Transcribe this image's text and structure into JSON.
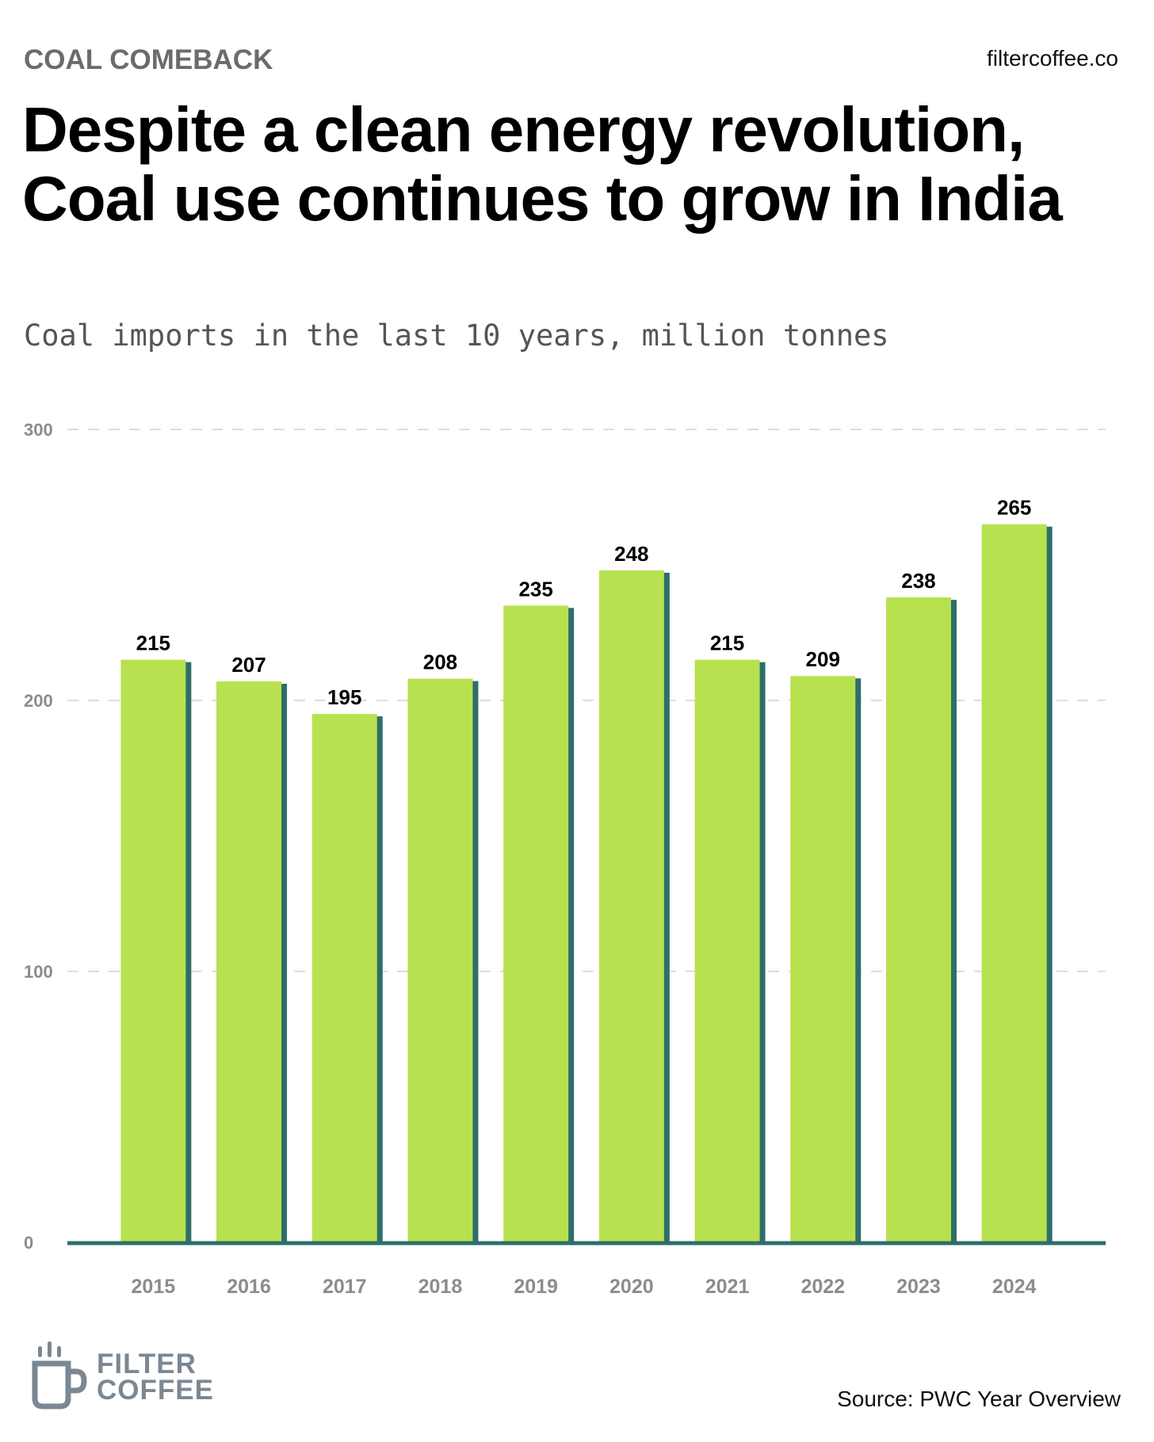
{
  "header": {
    "kicker": "COAL COMEBACK",
    "site": "filtercoffee.co",
    "title": "Despite a clean energy revolution, Coal use continues to grow in India",
    "subtitle": "Coal imports in the last 10 years, million tonnes"
  },
  "chart_data": {
    "type": "bar",
    "categories": [
      "2015",
      "2016",
      "2017",
      "2018",
      "2019",
      "2020",
      "2021",
      "2022",
      "2023",
      "2024"
    ],
    "values": [
      215,
      207,
      195,
      208,
      235,
      248,
      215,
      209,
      238,
      265
    ],
    "ylim": [
      0,
      300
    ],
    "yticks": [
      0,
      100,
      200,
      300
    ],
    "grid": true,
    "bar_color": "#b8e14f",
    "bar_shadow_color": "#2e6e6a",
    "baseline_color": "#2e6e6a",
    "gridline_color": "#dddddd",
    "tick_label_color": "#8c8c8c",
    "data_label_color": "#000000"
  },
  "footer": {
    "logo_icon": "coffee-cup-icon",
    "logo_line1": "FILTER",
    "logo_line2": "COFFEE",
    "logo_color": "#7b8793",
    "source": "Source: PWC Year Overview"
  }
}
